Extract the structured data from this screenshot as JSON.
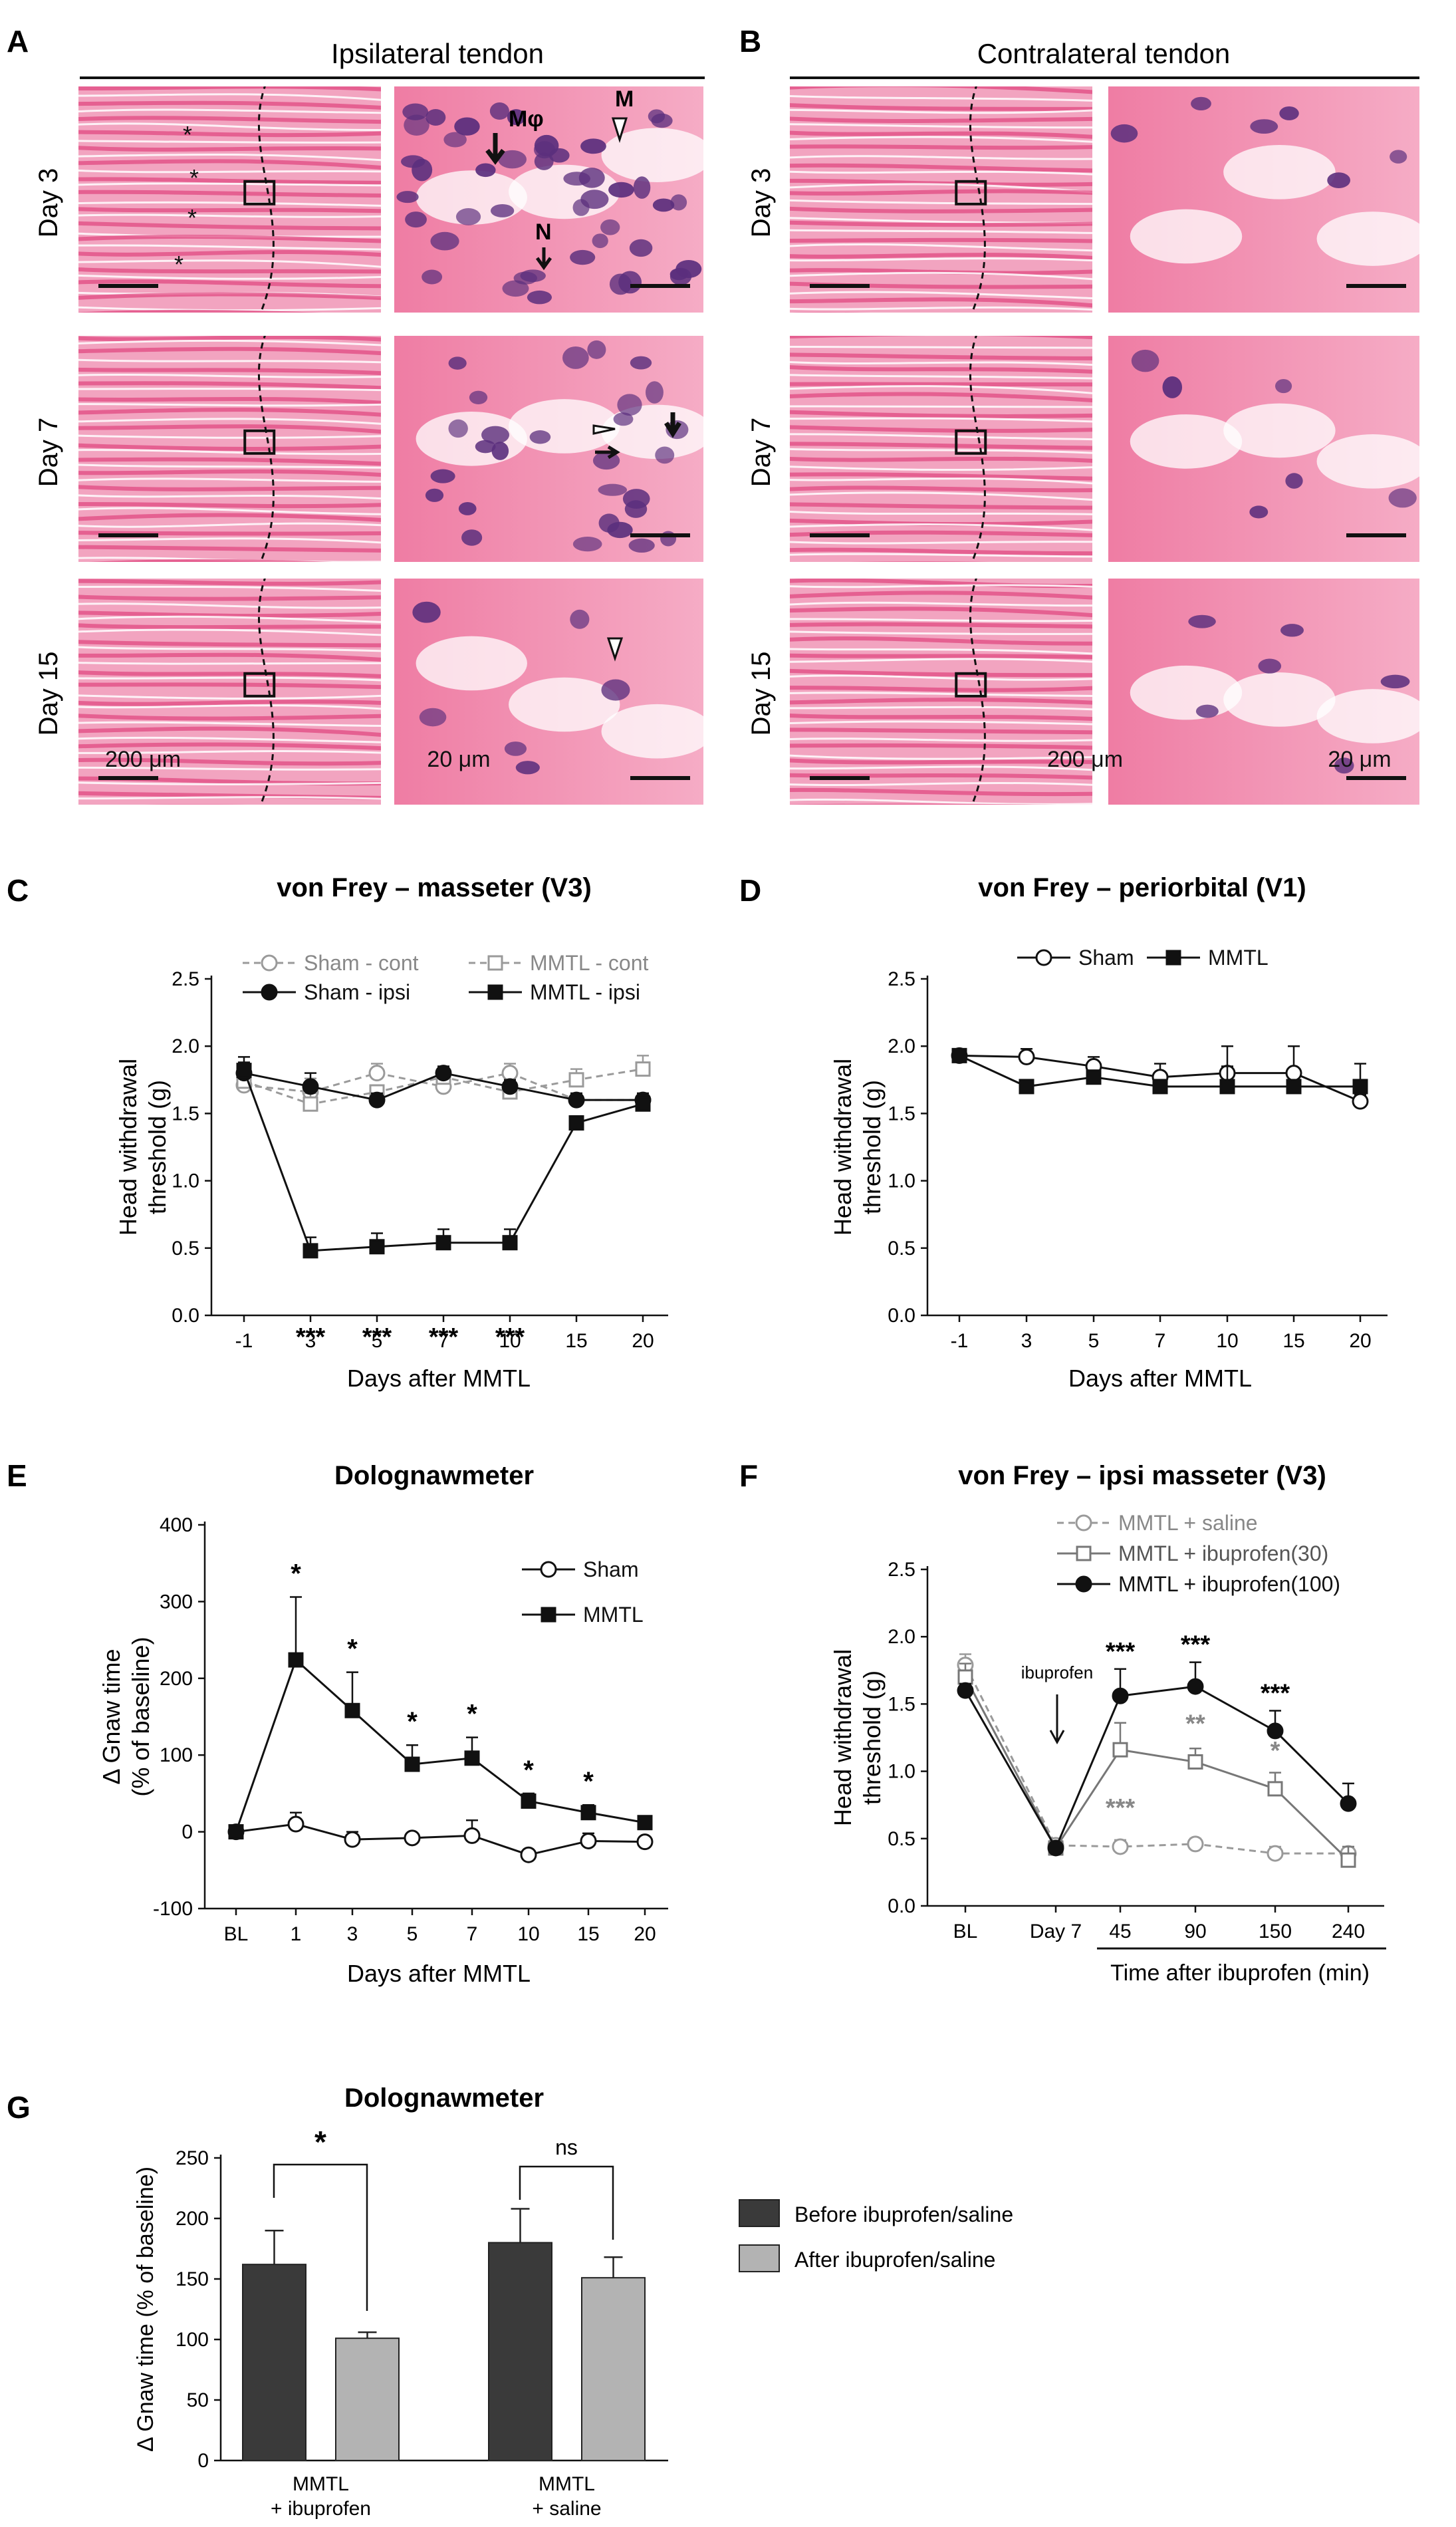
{
  "panels": {
    "A": {
      "letter": "A",
      "title": "Ipsilateral tendon",
      "annotations": {
        "m_phi": "Mφ",
        "m": "M",
        "n": "N"
      }
    },
    "B": {
      "letter": "B",
      "title": "Contralateral tendon"
    },
    "row_labels": [
      "Day 3",
      "Day 7",
      "Day 15"
    ],
    "scale_labels": {
      "low": "200 μm",
      "high": "20 μm"
    },
    "C": {
      "letter": "C"
    },
    "D": {
      "letter": "D"
    },
    "E": {
      "letter": "E"
    },
    "F": {
      "letter": "F"
    },
    "G": {
      "letter": "G"
    }
  },
  "colors": {
    "tissue_pink": "#e8578c",
    "tissue_light": "#f4b8cf",
    "nuclei": "#5b2f7d",
    "bar_dark": "#3a3a3a",
    "bar_light": "#b3b3b3",
    "dashed_gray": "#9a9a9a"
  },
  "chart_data": [
    {
      "id": "C",
      "type": "line",
      "title": "von Frey – masseter (V3)",
      "xlabel": "Days after MMTL",
      "ylabel": [
        "Head withdrawal",
        "threshold (g)"
      ],
      "categories": [
        "-1",
        "3",
        "5",
        "7",
        "10",
        "15",
        "20"
      ],
      "ylim": [
        0,
        2.5
      ],
      "yticks": [
        "0.0",
        "0.5",
        "1.0",
        "1.5",
        "2.0",
        "2.5"
      ],
      "series": [
        {
          "name": "Sham - cont",
          "marker": "circle-open",
          "dashed": true,
          "color": "#9a9a9a",
          "values": [
            1.71,
            1.66,
            1.8,
            1.7,
            1.8,
            1.6,
            1.6
          ],
          "err": [
            0.05,
            0.1,
            0.07,
            0.05,
            0.07,
            0.05,
            0.05
          ]
        },
        {
          "name": "MMTL - cont",
          "marker": "square-open",
          "dashed": true,
          "color": "#9a9a9a",
          "values": [
            1.74,
            1.57,
            1.66,
            1.77,
            1.66,
            1.75,
            1.83
          ],
          "err": [
            0.05,
            0.08,
            0.05,
            0.05,
            0.05,
            0.08,
            0.1
          ]
        },
        {
          "name": "Sham - ipsi",
          "marker": "circle-filled",
          "dashed": false,
          "color": "#111111",
          "values": [
            1.8,
            1.7,
            1.6,
            1.8,
            1.7,
            1.6,
            1.6
          ],
          "err": [
            0.08,
            0.1,
            0.05,
            0.05,
            0.05,
            0.05,
            0.05
          ]
        },
        {
          "name": "MMTL - ipsi",
          "marker": "square-filled",
          "dashed": false,
          "color": "#111111",
          "values": [
            1.82,
            0.48,
            0.51,
            0.54,
            0.54,
            1.43,
            1.57
          ],
          "err": [
            0.1,
            0.1,
            0.1,
            0.1,
            0.1,
            0.05,
            0.05
          ]
        }
      ],
      "significance": [
        "",
        "***",
        "***",
        "***",
        "***",
        "",
        ""
      ]
    },
    {
      "id": "D",
      "type": "line",
      "title": "von Frey – periorbital (V1)",
      "xlabel": "Days after MMTL",
      "ylabel": [
        "Head withdrawal",
        "threshold (g)"
      ],
      "categories": [
        "-1",
        "3",
        "5",
        "7",
        "10",
        "15",
        "20"
      ],
      "ylim": [
        0,
        2.5
      ],
      "yticks": [
        "0.0",
        "0.5",
        "1.0",
        "1.5",
        "2.0",
        "2.5"
      ],
      "series": [
        {
          "name": "Sham",
          "marker": "circle-open",
          "dashed": false,
          "color": "#111111",
          "values": [
            1.93,
            1.92,
            1.85,
            1.77,
            1.8,
            1.8,
            1.59
          ],
          "err": [
            0.05,
            0.06,
            0.07,
            0.1,
            0.2,
            0.2,
            0.05
          ]
        },
        {
          "name": "MMTL",
          "marker": "square-filled",
          "dashed": false,
          "color": "#111111",
          "values": [
            1.93,
            1.7,
            1.77,
            1.7,
            1.7,
            1.7,
            1.7
          ],
          "err": [
            0.05,
            0.05,
            0.05,
            0.05,
            0.15,
            0.05,
            0.17
          ]
        }
      ]
    },
    {
      "id": "E",
      "type": "line",
      "title": "Dolognawmeter",
      "xlabel": "Days after MMTL",
      "ylabel": [
        "Δ Gnaw time",
        "(% of baseline)"
      ],
      "categories": [
        "BL",
        "1",
        "3",
        "5",
        "7",
        "10",
        "15",
        "20"
      ],
      "ylim": [
        -100,
        400
      ],
      "yticks": [
        "-100",
        "0",
        "100",
        "200",
        "300",
        "400"
      ],
      "series": [
        {
          "name": "Sham",
          "marker": "circle-open",
          "dashed": false,
          "color": "#111111",
          "values": [
            0,
            10,
            -10,
            -8,
            -5,
            -30,
            -12,
            -13
          ],
          "err": [
            0,
            15,
            10,
            0,
            20,
            0,
            10,
            0
          ]
        },
        {
          "name": "MMTL",
          "marker": "square-filled",
          "dashed": false,
          "color": "#111111",
          "values": [
            0,
            224,
            158,
            88,
            96,
            40,
            25,
            12
          ],
          "err": [
            0,
            82,
            50,
            25,
            27,
            10,
            10,
            0
          ]
        }
      ],
      "significance": [
        "",
        "*",
        "*",
        "*",
        "*",
        "*",
        "*",
        ""
      ]
    },
    {
      "id": "F",
      "type": "line",
      "title": "von Frey – ipsi masseter (V3)",
      "xlabel": "Time after ibuprofen (min)",
      "ylabel": [
        "Head withdrawal",
        "threshold (g)"
      ],
      "categories": [
        "BL",
        "Day 7",
        "45",
        "90",
        "150",
        "240"
      ],
      "ylim": [
        0,
        2.5
      ],
      "yticks": [
        "0.0",
        "0.5",
        "1.0",
        "1.5",
        "2.0",
        "2.5"
      ],
      "annotation": "ibuprofen",
      "series": [
        {
          "name": "MMTL + saline",
          "marker": "circle-open",
          "dashed": true,
          "color": "#9a9a9a",
          "values": [
            1.79,
            0.45,
            0.44,
            0.46,
            0.39,
            0.39
          ],
          "err": [
            0.08,
            0.04,
            0.05,
            0.04,
            0.05,
            0.05
          ]
        },
        {
          "name": "MMTL + ibuprofen(30)",
          "marker": "square-open",
          "dashed": false,
          "color": "#777777",
          "values": [
            1.7,
            0.43,
            1.16,
            1.07,
            0.87,
            0.34
          ],
          "err": [
            0.1,
            0.04,
            0.2,
            0.1,
            0.12,
            0.1
          ]
        },
        {
          "name": "MMTL + ibuprofen(100)",
          "marker": "circle-filled",
          "dashed": false,
          "color": "#111111",
          "values": [
            1.6,
            0.43,
            1.56,
            1.63,
            1.3,
            0.76
          ],
          "err": [
            0.05,
            0.04,
            0.2,
            0.18,
            0.15,
            0.15
          ]
        }
      ],
      "significance_black": [
        "",
        "",
        "***",
        "***",
        "***",
        ""
      ],
      "significance_gray": [
        "",
        "",
        "***",
        "**",
        "*",
        ""
      ]
    },
    {
      "id": "G",
      "type": "bar",
      "title": "Dolognawmeter",
      "ylabel": "Δ Gnaw time (% of baseline)",
      "groups": [
        [
          "MMTL",
          "+ ibuprofen"
        ],
        [
          "MMTL",
          "+ saline"
        ]
      ],
      "ylim": [
        0,
        250
      ],
      "yticks": [
        "0",
        "50",
        "100",
        "150",
        "200",
        "250"
      ],
      "series": [
        {
          "name": "Before ibuprofen/saline",
          "color": "#3a3a3a",
          "values": [
            162,
            180
          ],
          "err": [
            28,
            28
          ]
        },
        {
          "name": "After ibuprofen/saline",
          "color": "#b3b3b3",
          "values": [
            101,
            151
          ],
          "err": [
            5,
            17
          ]
        }
      ],
      "comparisons": [
        "*",
        "ns"
      ]
    }
  ]
}
